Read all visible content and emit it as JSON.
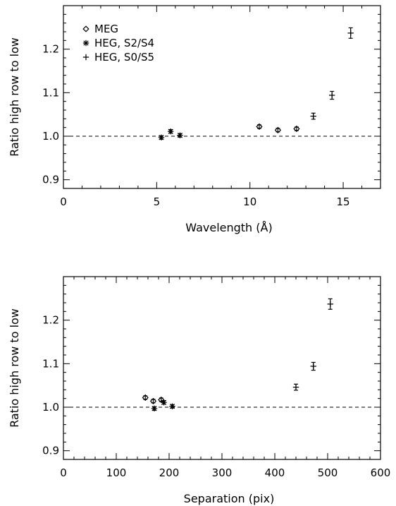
{
  "chart_data": [
    {
      "type": "scatter",
      "title": "",
      "xlabel": "Wavelength (Å)",
      "ylabel": "Ratio high row to low",
      "xlim": [
        0,
        17
      ],
      "ylim": [
        0.88,
        1.3
      ],
      "xticks": [
        0,
        5,
        10,
        15
      ],
      "yticks": [
        0.9,
        1.0,
        1.1,
        1.2
      ],
      "ytick_labels": [
        "0.9",
        "1.0",
        "1.1",
        "1.2"
      ],
      "reference_line": {
        "y": 1.0,
        "style": "dashed"
      },
      "legend_position": "top-left",
      "series": [
        {
          "name": "MEG",
          "marker": "diamond",
          "points": [
            {
              "x": 10.5,
              "y": 1.022,
              "err": 0.004
            },
            {
              "x": 11.5,
              "y": 1.014,
              "err": 0.004
            },
            {
              "x": 12.5,
              "y": 1.017,
              "err": 0.004
            }
          ]
        },
        {
          "name": "HEG, S2/S4",
          "marker": "asterisk",
          "points": [
            {
              "x": 5.25,
              "y": 0.997,
              "err": 0.004
            },
            {
              "x": 5.75,
              "y": 1.011,
              "err": 0.004
            },
            {
              "x": 6.25,
              "y": 1.002,
              "err": 0.004
            }
          ]
        },
        {
          "name": "HEG, S0/S5",
          "marker": "plus",
          "points": [
            {
              "x": 13.4,
              "y": 1.046,
              "err": 0.007
            },
            {
              "x": 14.4,
              "y": 1.094,
              "err": 0.009
            },
            {
              "x": 15.4,
              "y": 1.237,
              "err": 0.012
            }
          ]
        }
      ]
    },
    {
      "type": "scatter",
      "title": "",
      "xlabel": "Separation (pix)",
      "ylabel": "Ratio high row to low",
      "xlim": [
        0,
        600
      ],
      "ylim": [
        0.88,
        1.3
      ],
      "xticks": [
        0,
        100,
        200,
        300,
        400,
        500,
        600
      ],
      "yticks": [
        0.9,
        1.0,
        1.1,
        1.2
      ],
      "ytick_labels": [
        "0.9",
        "1.0",
        "1.1",
        "1.2"
      ],
      "reference_line": {
        "y": 1.0,
        "style": "dashed"
      },
      "series": [
        {
          "name": "MEG",
          "marker": "diamond",
          "points": [
            {
              "x": 155,
              "y": 1.022,
              "err": 0.004
            },
            {
              "x": 170,
              "y": 1.014,
              "err": 0.004
            },
            {
              "x": 185,
              "y": 1.017,
              "err": 0.004
            }
          ]
        },
        {
          "name": "HEG, S2/S4",
          "marker": "asterisk",
          "points": [
            {
              "x": 172,
              "y": 0.997,
              "err": 0.004
            },
            {
              "x": 190,
              "y": 1.011,
              "err": 0.004
            },
            {
              "x": 206,
              "y": 1.002,
              "err": 0.004
            }
          ]
        },
        {
          "name": "HEG, S0/S5",
          "marker": "plus",
          "points": [
            {
              "x": 440,
              "y": 1.046,
              "err": 0.007
            },
            {
              "x": 473,
              "y": 1.094,
              "err": 0.009
            },
            {
              "x": 505,
              "y": 1.237,
              "err": 0.012
            }
          ]
        }
      ]
    }
  ]
}
